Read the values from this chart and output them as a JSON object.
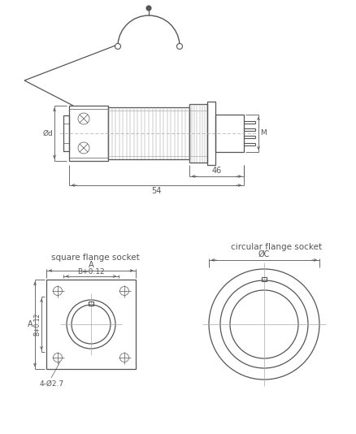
{
  "bg_color": "#ffffff",
  "line_color": "#555555",
  "dim_color": "#555555",
  "text_color": "#555555",
  "label_square": "square flange socket",
  "label_circular": "circular flange socket",
  "dim_46": "46",
  "dim_54": "54",
  "dim_phid": "Ød",
  "dim_M": "M",
  "dim_A": "A",
  "dim_B012": "B+0.12",
  "dim_phiC": "ØC",
  "dim_4phi27": "4-Ø2.7"
}
